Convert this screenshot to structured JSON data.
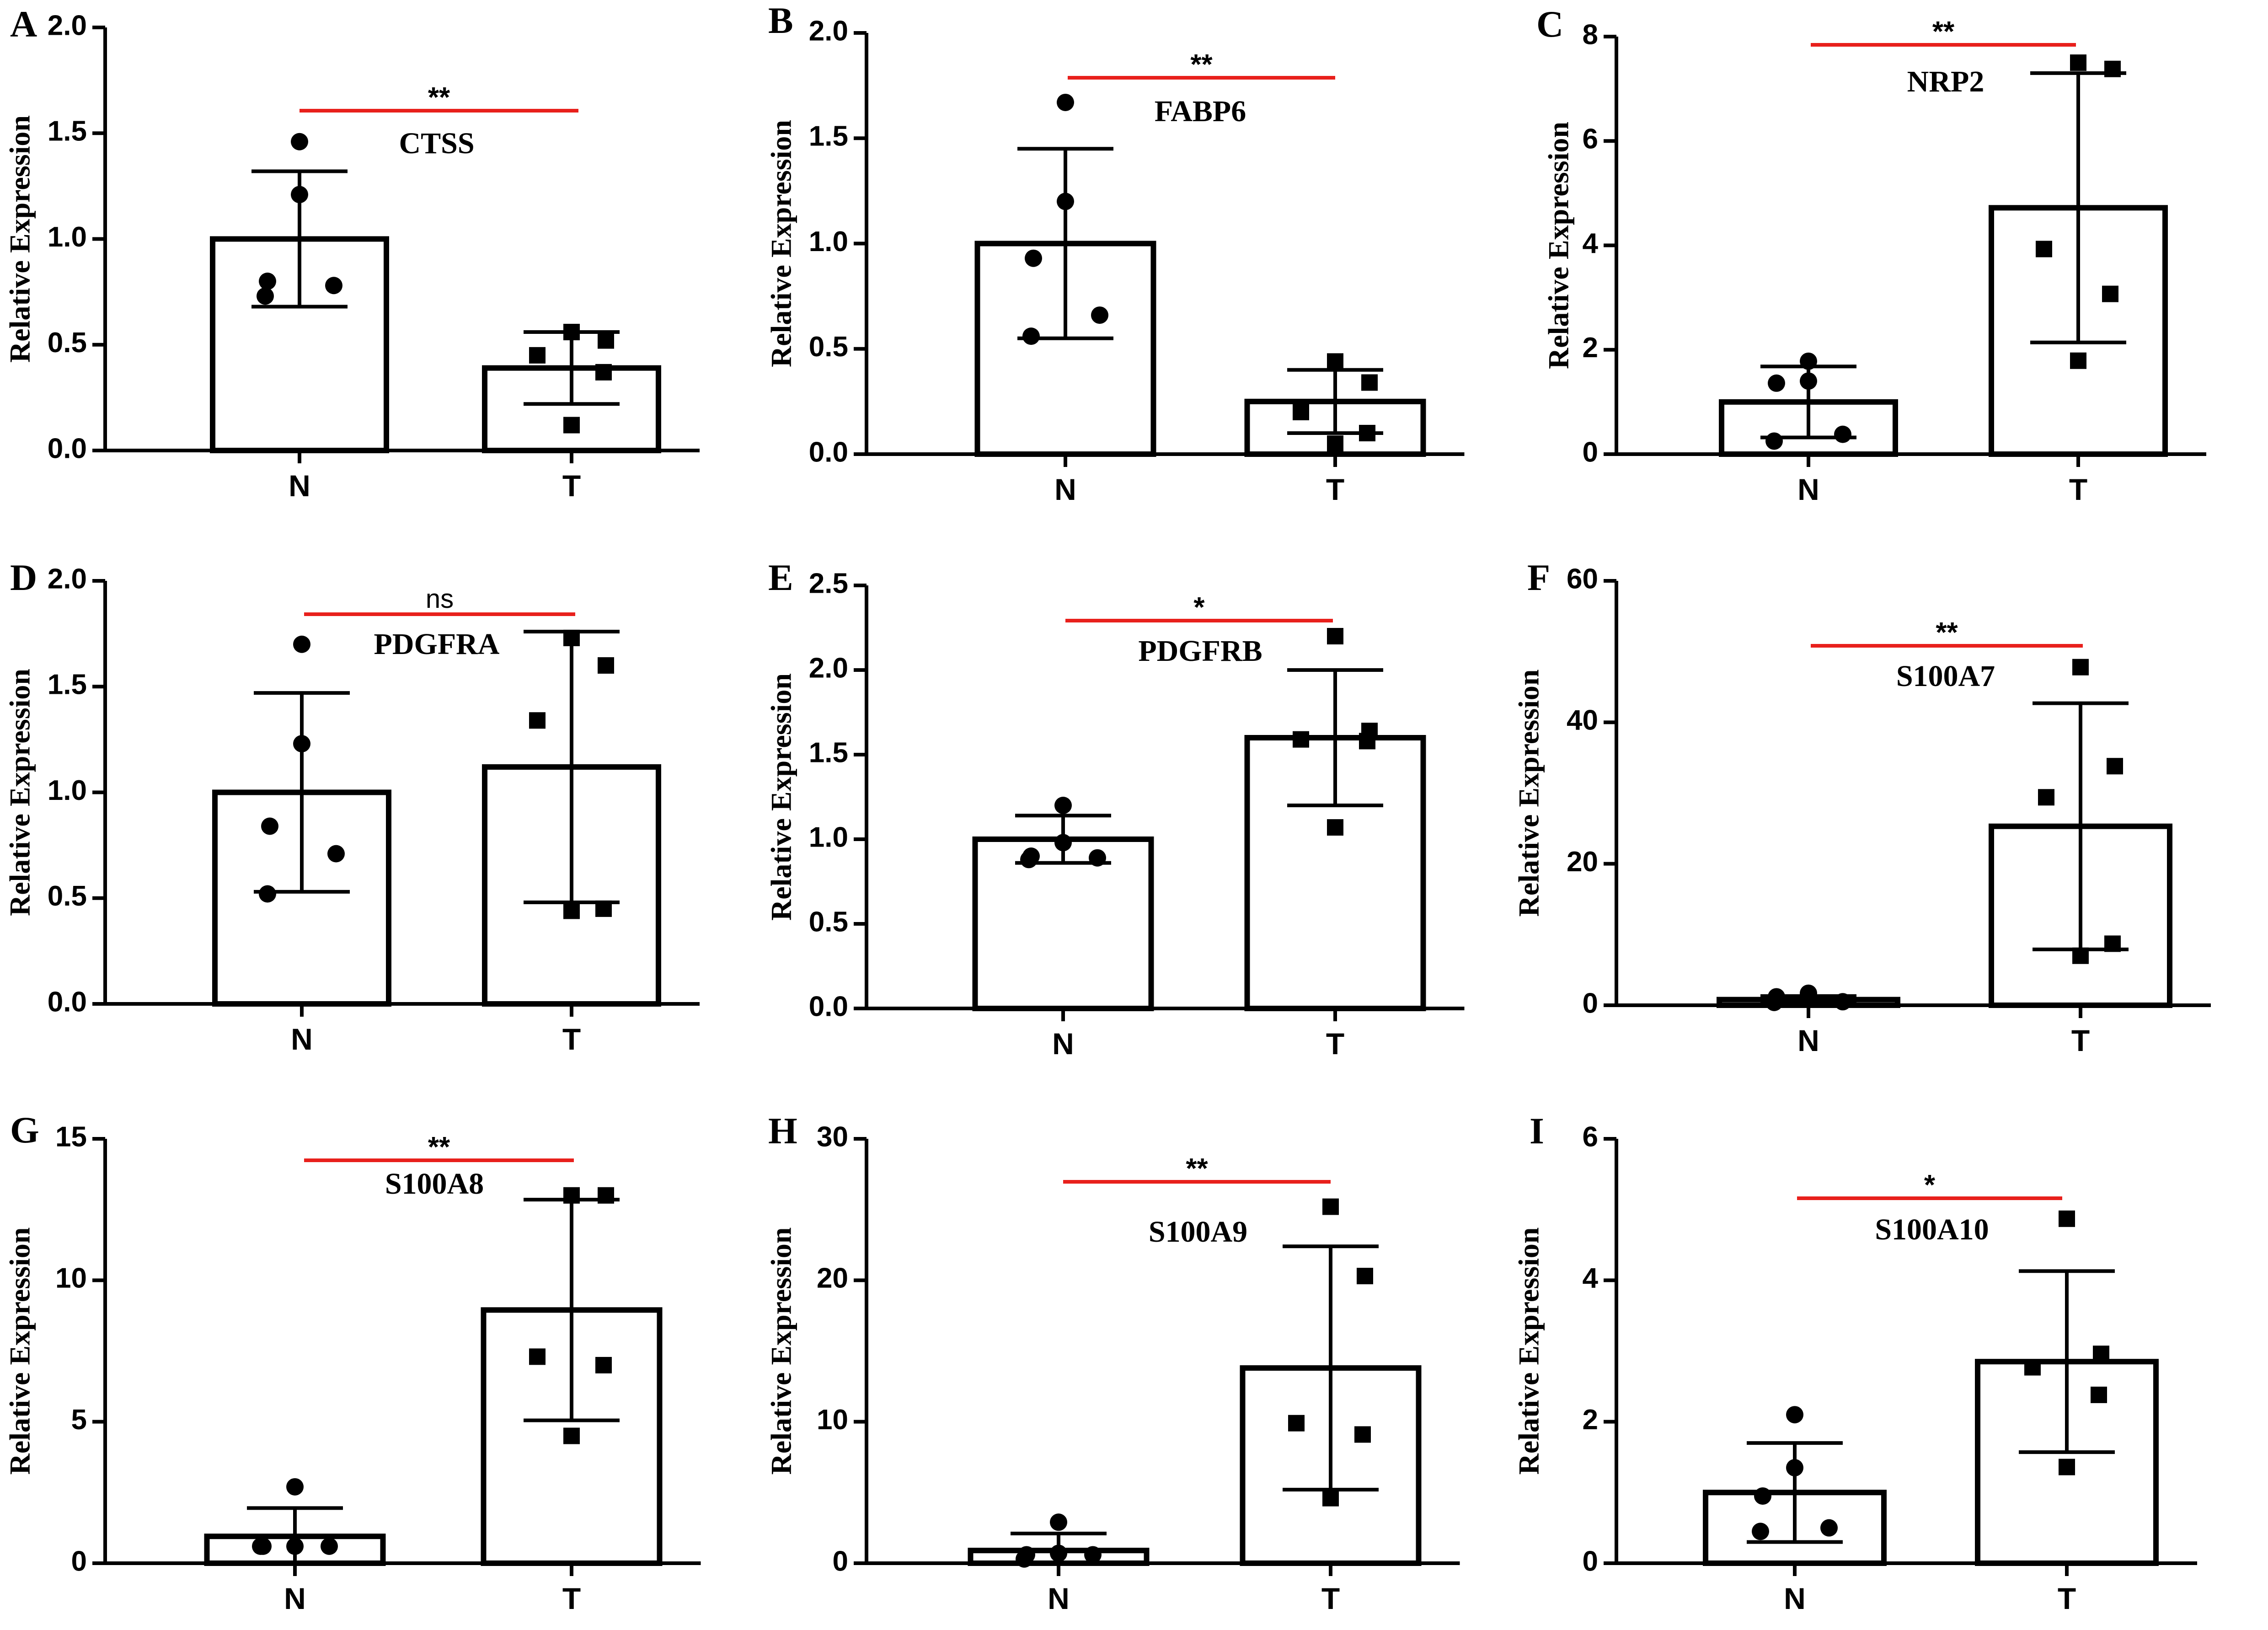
{
  "chart_data": [
    {
      "type": "bar",
      "panel": "A",
      "title": "CTSS",
      "ylabel": "Relative Expression",
      "categories": [
        "N",
        "T"
      ],
      "ylim": [
        0,
        2.0
      ],
      "yticks": [
        "0.0",
        "0.5",
        "1.0",
        "1.5",
        "2.0"
      ],
      "values": [
        1.0,
        0.39
      ],
      "sd": [
        0.32,
        0.17
      ],
      "points": [
        [
          1.46,
          1.21,
          0.8,
          0.78,
          0.73
        ],
        [
          0.56,
          0.52,
          0.45,
          0.37,
          0.12
        ]
      ],
      "markers": [
        "circle",
        "square"
      ],
      "significance": "**"
    },
    {
      "type": "bar",
      "panel": "B",
      "title": "FABP6",
      "ylabel": "Relative Expression",
      "categories": [
        "N",
        "T"
      ],
      "ylim": [
        0,
        2.0
      ],
      "yticks": [
        "0.0",
        "0.5",
        "1.0",
        "1.5",
        "2.0"
      ],
      "values": [
        1.0,
        0.25
      ],
      "sd": [
        0.45,
        0.15
      ],
      "points": [
        [
          1.67,
          1.2,
          0.93,
          0.66,
          0.56
        ],
        [
          0.44,
          0.34,
          0.2,
          0.1,
          0.05
        ]
      ],
      "markers": [
        "circle",
        "square"
      ],
      "significance": "**"
    },
    {
      "type": "bar",
      "panel": "C",
      "title": "NRP2",
      "ylabel": "Relative Expression",
      "categories": [
        "N",
        "T"
      ],
      "ylim": [
        0,
        8
      ],
      "yticks": [
        "0",
        "2",
        "4",
        "6",
        "8"
      ],
      "values": [
        1.0,
        4.72
      ],
      "sd": [
        0.68,
        2.58
      ],
      "points": [
        [
          1.78,
          1.4,
          1.36,
          0.38,
          0.25
        ],
        [
          7.5,
          7.38,
          3.93,
          3.07,
          1.79
        ]
      ],
      "markers": [
        "circle",
        "square"
      ],
      "significance": "**"
    },
    {
      "type": "bar",
      "panel": "D",
      "title": "PDGFRA",
      "ylabel": "Relative Expression",
      "categories": [
        "N",
        "T"
      ],
      "ylim": [
        0,
        2.0
      ],
      "yticks": [
        "0.0",
        "0.5",
        "1.0",
        "1.5",
        "2.0"
      ],
      "values": [
        1.0,
        1.12
      ],
      "sd": [
        0.47,
        0.64
      ],
      "points": [
        [
          1.7,
          1.23,
          0.84,
          0.71,
          0.52
        ],
        [
          1.73,
          1.6,
          1.34,
          0.45,
          0.44
        ]
      ],
      "markers": [
        "circle",
        "square"
      ],
      "significance": "ns"
    },
    {
      "type": "bar",
      "panel": "E",
      "title": "PDGFRB",
      "ylabel": "Relative Expression",
      "categories": [
        "N",
        "T"
      ],
      "ylim": [
        0,
        2.5
      ],
      "yticks": [
        "0.0",
        "0.5",
        "1.0",
        "1.5",
        "2.0",
        "2.5"
      ],
      "values": [
        1.0,
        1.6
      ],
      "sd": [
        0.14,
        0.4
      ],
      "points": [
        [
          1.2,
          0.98,
          0.9,
          0.89,
          0.88
        ],
        [
          2.2,
          1.64,
          1.59,
          1.58,
          1.07
        ]
      ],
      "markers": [
        "circle",
        "square"
      ],
      "significance": "*"
    },
    {
      "type": "bar",
      "panel": "F",
      "title": "S100A7",
      "ylabel": "Relative Expression",
      "categories": [
        "N",
        "T"
      ],
      "ylim": [
        0,
        60
      ],
      "yticks": [
        "0",
        "20",
        "40",
        "60"
      ],
      "values": [
        0.8,
        25.3
      ],
      "sd": [
        0.5,
        17.4
      ],
      "points": [
        [
          1.7,
          1.4,
          1.2,
          0.5,
          0.4
        ],
        [
          47.8,
          33.8,
          29.4,
          8.7,
          7.0
        ]
      ],
      "markers": [
        "circle",
        "square"
      ],
      "significance": "**"
    },
    {
      "type": "bar",
      "panel": "G",
      "title": "S100A8",
      "ylabel": "Relative Expression",
      "categories": [
        "N",
        "T"
      ],
      "ylim": [
        0,
        15
      ],
      "yticks": [
        "0",
        "5",
        "10",
        "15"
      ],
      "values": [
        0.95,
        8.95
      ],
      "sd": [
        1.0,
        3.9
      ],
      "points": [
        [
          2.7,
          0.6,
          0.6,
          0.6,
          0.6
        ],
        [
          13.0,
          13.0,
          7.3,
          7.0,
          4.5
        ]
      ],
      "markers": [
        "circle",
        "square"
      ],
      "significance": "**"
    },
    {
      "type": "bar",
      "panel": "H",
      "title": "S100A9",
      "ylabel": "Relative Expression",
      "categories": [
        "N",
        "T"
      ],
      "ylim": [
        0,
        30
      ],
      "yticks": [
        "0",
        "10",
        "20",
        "30"
      ],
      "values": [
        0.9,
        13.8
      ],
      "sd": [
        1.2,
        8.6
      ],
      "points": [
        [
          2.9,
          0.7,
          0.6,
          0.6,
          0.3
        ],
        [
          25.2,
          20.3,
          9.9,
          9.1,
          4.6
        ]
      ],
      "markers": [
        "circle",
        "square"
      ],
      "significance": "**"
    },
    {
      "type": "bar",
      "panel": "I",
      "title": "S100A10",
      "ylabel": "Relative Expression",
      "categories": [
        "N",
        "T"
      ],
      "ylim": [
        0,
        6
      ],
      "yticks": [
        "0",
        "2",
        "4",
        "6"
      ],
      "values": [
        1.0,
        2.85
      ],
      "sd": [
        0.7,
        1.28
      ],
      "points": [
        [
          2.1,
          1.35,
          0.95,
          0.5,
          0.45
        ],
        [
          4.87,
          2.96,
          2.77,
          2.38,
          1.36
        ]
      ],
      "markers": [
        "circle",
        "square"
      ],
      "significance": "*"
    }
  ],
  "colors": {
    "significance_line": "#e8201c",
    "ink": "#000000",
    "bar_fill": "#ffffff"
  }
}
